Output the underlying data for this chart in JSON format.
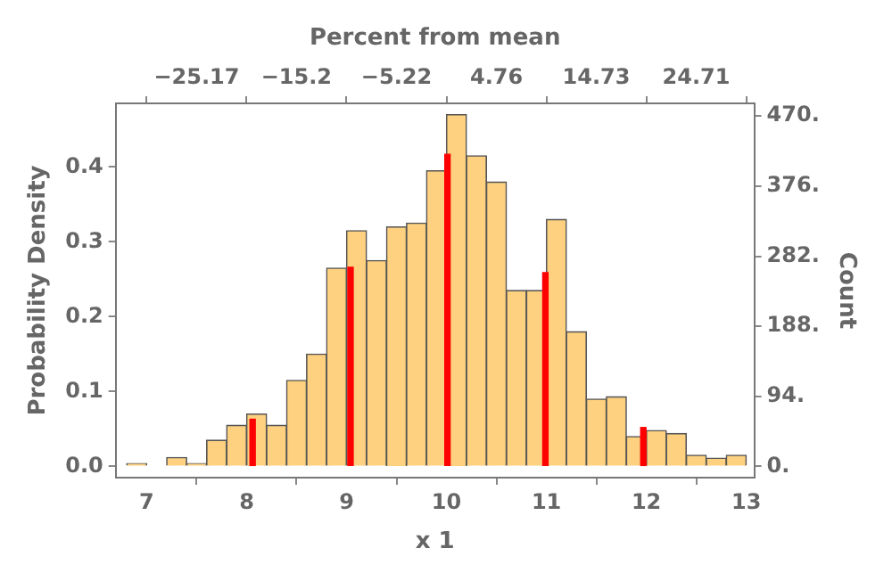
{
  "chart_data": {
    "type": "histogram",
    "xlabel": "x 1",
    "ylabel": "Probability Density",
    "y2label": "Count",
    "x2label": "Percent from mean",
    "series": [
      {
        "color": "#fdd180",
        "bins": [
          6.8,
          7.0,
          7.2,
          7.4,
          7.6,
          7.8,
          8.0,
          8.2,
          8.4,
          8.6,
          8.8,
          9.0,
          9.2,
          9.4,
          9.6,
          9.8,
          10.0,
          10.2,
          10.4,
          10.6,
          10.8,
          11.0,
          11.2,
          11.4,
          11.6,
          11.8,
          12.0,
          12.2,
          12.4,
          12.6,
          12.8,
          13.0
        ],
        "values": [
          0.004,
          0,
          0.012,
          0.004,
          0.035,
          0.055,
          0.07,
          0.055,
          0.115,
          0.15,
          0.265,
          0.315,
          0.275,
          0.32,
          0.325,
          0.395,
          0.47,
          0.415,
          0.38,
          0.235,
          0.235,
          0.33,
          0.18,
          0.09,
          0.093,
          0.04,
          0.048,
          0.044,
          0.015,
          0.011,
          0.015
        ]
      },
      {
        "type": "bar",
        "color": "#ff0000",
        "x": [
          8.06,
          9.04,
          10.01,
          10.99,
          11.97
        ],
        "values": [
          0.063,
          0.266,
          0.417,
          0.259,
          0.052
        ]
      }
    ],
    "xlim": [
      6.69,
      13.08
    ],
    "xticks": [
      7,
      8,
      9,
      10,
      11,
      12,
      13
    ],
    "ylim": [
      -0.015,
      0.485
    ],
    "yticks": [
      {
        "value": 0,
        "label": "0.0"
      },
      {
        "value": 0.1,
        "label": "0.1"
      },
      {
        "value": 0.2,
        "label": "0.2"
      },
      {
        "value": 0.3,
        "label": "0.3"
      },
      {
        "value": 0.4,
        "label": "0.4"
      }
    ],
    "y2lim": [
      -15,
      487
    ],
    "y2ticks": [
      {
        "value": 0,
        "label": "0."
      },
      {
        "value": 94,
        "label": "94."
      },
      {
        "value": 188,
        "label": "188."
      },
      {
        "value": 282,
        "label": "282."
      },
      {
        "value": 376,
        "label": "376."
      },
      {
        "value": 470,
        "label": "470."
      }
    ],
    "x2lim": [
      -33.25,
      30.5
    ],
    "x2ticks": [
      {
        "value": -25.17,
        "label": "−25.17"
      },
      {
        "value": -15.2,
        "label": "−15.2"
      },
      {
        "value": -5.22,
        "label": "−5.22"
      },
      {
        "value": 4.76,
        "label": "4.76"
      },
      {
        "value": 14.73,
        "label": "14.73"
      },
      {
        "value": 24.71,
        "label": "24.71"
      }
    ],
    "grid": false,
    "legend": false
  }
}
